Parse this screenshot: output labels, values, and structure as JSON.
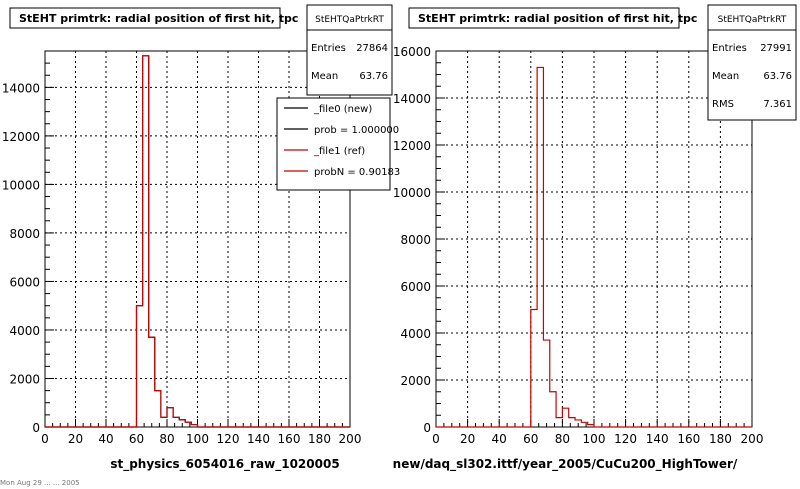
{
  "colors": {
    "background": "#ffffff",
    "frame": "#000000",
    "grid": "#000000",
    "new_hist": "#000000",
    "ref_hist": "#cc0000"
  },
  "chart_data": [
    {
      "type": "histogram",
      "title": "StEHT primtrk: radial position of first hit, tpc",
      "xlabel": "st_physics_6054016_raw_1020005",
      "ylabel": "",
      "xlim": [
        0,
        200
      ],
      "ylim": [
        0,
        15500
      ],
      "xticks": [
        "0",
        "20",
        "40",
        "60",
        "80",
        "100",
        "120",
        "140",
        "160",
        "180",
        "200"
      ],
      "yticks": [
        "0",
        "2000",
        "4000",
        "6000",
        "8000",
        "10000",
        "12000",
        "14000"
      ],
      "grid": true,
      "bin_width": 4,
      "stats": {
        "name": "StEHTQaPtrkRT",
        "entries_label": "Entries",
        "entries": "27864",
        "mean_label": "Mean",
        "mean": "63.76"
      },
      "legend": {
        "placement": "top-right",
        "items": [
          "_file0 (new)",
          "prob = 1.000000",
          "_file1 (ref)",
          "probN = 0.90183"
        ]
      },
      "series": [
        {
          "name": "_file0 (new)",
          "color": "#000000",
          "bin_edges": [
            0,
            4,
            8,
            12,
            16,
            20,
            24,
            28,
            32,
            36,
            40,
            44,
            48,
            52,
            56,
            60,
            64,
            68,
            72,
            76,
            80,
            84,
            88,
            92,
            96,
            100,
            104,
            108,
            112,
            116,
            120,
            124,
            128,
            132,
            136,
            140,
            144,
            148,
            152,
            156,
            160,
            164,
            168,
            172,
            176,
            180,
            184,
            188,
            192,
            196,
            200
          ],
          "values": [
            0,
            0,
            0,
            0,
            0,
            0,
            0,
            0,
            0,
            0,
            0,
            0,
            0,
            0,
            0,
            5000,
            15300,
            3700,
            1500,
            400,
            800,
            400,
            300,
            200,
            100,
            0,
            0,
            0,
            0,
            0,
            0,
            0,
            0,
            0,
            0,
            0,
            0,
            0,
            0,
            0,
            0,
            0,
            0,
            0,
            0,
            0,
            0,
            0,
            0,
            0
          ]
        },
        {
          "name": "_file1 (ref)",
          "color": "#cc0000",
          "bin_edges": [
            0,
            4,
            8,
            12,
            16,
            20,
            24,
            28,
            32,
            36,
            40,
            44,
            48,
            52,
            56,
            60,
            64,
            68,
            72,
            76,
            80,
            84,
            88,
            92,
            96,
            100,
            104,
            108,
            112,
            116,
            120,
            124,
            128,
            132,
            136,
            140,
            144,
            148,
            152,
            156,
            160,
            164,
            168,
            172,
            176,
            180,
            184,
            188,
            192,
            196,
            200
          ],
          "values": [
            0,
            0,
            0,
            0,
            0,
            0,
            0,
            0,
            0,
            0,
            0,
            0,
            0,
            0,
            0,
            5000,
            15300,
            3700,
            1500,
            400,
            800,
            400,
            300,
            200,
            100,
            0,
            0,
            0,
            0,
            0,
            0,
            0,
            0,
            0,
            0,
            0,
            0,
            0,
            0,
            0,
            0,
            0,
            0,
            0,
            0,
            0,
            0,
            0,
            0,
            0
          ]
        }
      ]
    },
    {
      "type": "histogram",
      "title": "StEHT primtrk: radial position of first hit, tpc",
      "xlabel": "new/daq_sl302.ittf/year_2005/CuCu200_HighTower/",
      "ylabel": "",
      "xlim": [
        0,
        200
      ],
      "ylim": [
        0,
        16000
      ],
      "xticks": [
        "0",
        "20",
        "40",
        "60",
        "80",
        "100",
        "120",
        "140",
        "160",
        "180",
        "200"
      ],
      "yticks": [
        "0",
        "2000",
        "4000",
        "6000",
        "8000",
        "10000",
        "12000",
        "14000",
        "16000"
      ],
      "grid": true,
      "bin_width": 4,
      "stats": {
        "name": "StEHTQaPtrkRT",
        "entries_label": "Entries",
        "entries": "27991",
        "mean_label": "Mean",
        "mean": "63.76",
        "rms_label": "RMS",
        "rms": "7.361"
      },
      "series": [
        {
          "name": "",
          "color": "#cc0000",
          "bin_edges": [
            0,
            4,
            8,
            12,
            16,
            20,
            24,
            28,
            32,
            36,
            40,
            44,
            48,
            52,
            56,
            60,
            64,
            68,
            72,
            76,
            80,
            84,
            88,
            92,
            96,
            100,
            104,
            108,
            112,
            116,
            120,
            124,
            128,
            132,
            136,
            140,
            144,
            148,
            152,
            156,
            160,
            164,
            168,
            172,
            176,
            180,
            184,
            188,
            192,
            196,
            200
          ],
          "values": [
            0,
            0,
            0,
            0,
            0,
            0,
            0,
            0,
            0,
            0,
            0,
            0,
            0,
            0,
            0,
            5000,
            15300,
            3700,
            1500,
            400,
            800,
            400,
            300,
            200,
            100,
            0,
            0,
            0,
            0,
            0,
            0,
            0,
            0,
            0,
            0,
            0,
            0,
            0,
            0,
            0,
            0,
            0,
            0,
            0,
            0,
            0,
            0,
            0,
            0,
            0
          ]
        }
      ]
    }
  ],
  "footer": {
    "text": "Mon Aug 29 ... ... 2005"
  }
}
